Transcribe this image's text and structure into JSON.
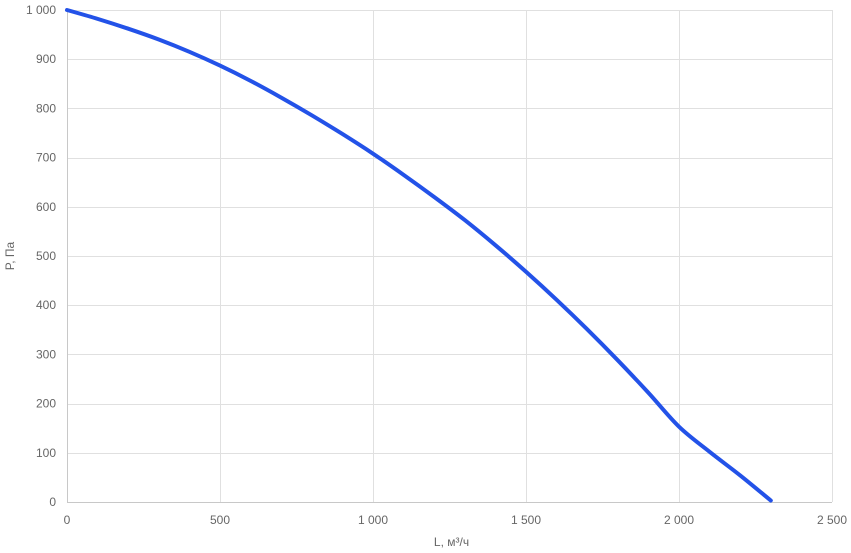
{
  "chart_data": {
    "type": "line",
    "xlabel": "L, м³/ч",
    "ylabel": "P, Па",
    "xlim": [
      0,
      2500
    ],
    "ylim": [
      0,
      1000
    ],
    "x_ticks": [
      0,
      500,
      1000,
      1500,
      2000,
      2500
    ],
    "x_tick_labels": [
      "0",
      "500",
      "1 000",
      "1 500",
      "2 000",
      "2 500"
    ],
    "y_ticks": [
      0,
      100,
      200,
      300,
      400,
      500,
      600,
      700,
      800,
      900,
      1000
    ],
    "y_tick_labels": [
      "0",
      "100",
      "200",
      "300",
      "400",
      "500",
      "600",
      "700",
      "800",
      "900",
      "1 000"
    ],
    "grid": true,
    "series": [
      {
        "color": "#2352e8",
        "x": [
          0,
          100,
          200,
          300,
          400,
          500,
          600,
          700,
          800,
          900,
          1000,
          1100,
          1200,
          1300,
          1400,
          1500,
          1600,
          1700,
          1800,
          1900,
          2000,
          2100,
          2200,
          2300
        ],
        "y": [
          1000,
          982,
          962,
          940,
          915,
          887,
          856,
          822,
          786,
          748,
          708,
          665,
          620,
          573,
          522,
          468,
          411,
          351,
          288,
          222,
          153,
          102,
          54,
          3
        ]
      }
    ]
  }
}
